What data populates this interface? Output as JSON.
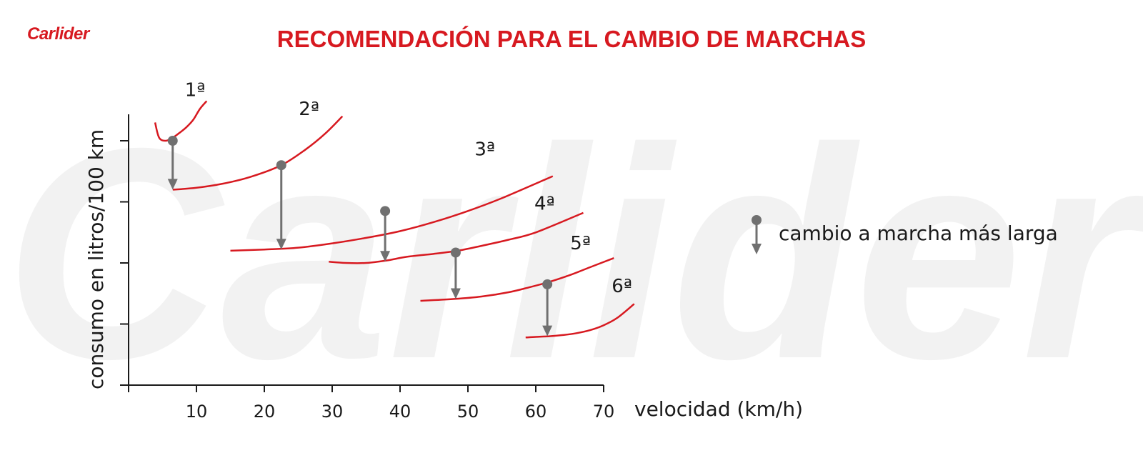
{
  "brand": {
    "logo_text": "Carlider"
  },
  "header": {
    "title": "RECOMENDACIÓN PARA EL CAMBIO DE MARCHAS"
  },
  "colors": {
    "accent": "#d71920",
    "marker": "#707070",
    "axis": "#1a1a1a",
    "text": "#1a1a1a"
  },
  "legend": {
    "icon": "shift-marker-arrow-icon",
    "label": "cambio a marcha más larga"
  },
  "chart_data": {
    "type": "line",
    "title": "RECOMENDACIÓN PARA EL CAMBIO DE MARCHAS",
    "xlabel": "velocidad (km/h)",
    "ylabel": "consumo en litros/100 km",
    "xlim": [
      0,
      70
    ],
    "ylim": [
      0,
      4.4
    ],
    "x_ticks": [
      10,
      20,
      30,
      40,
      50,
      60,
      70
    ],
    "y_ticks": [
      1,
      2,
      3,
      4
    ],
    "y_tick_labels_shown": false,
    "grid": false,
    "series": [
      {
        "name": "1ª",
        "x": [
          3.9,
          4.5,
          5.5,
          6.5,
          7.5,
          8.5,
          9.5,
          10.5,
          11.5
        ],
        "y": [
          4.3,
          4.05,
          4.0,
          4.05,
          4.13,
          4.22,
          4.34,
          4.52,
          4.65
        ]
      },
      {
        "name": "2ª",
        "x": [
          6.5,
          10,
          14,
          18,
          22.5,
          26,
          29,
          31.5
        ],
        "y": [
          3.2,
          3.23,
          3.3,
          3.41,
          3.6,
          3.85,
          4.12,
          4.4
        ]
      },
      {
        "name": "3ª",
        "x": [
          15,
          20,
          25,
          30,
          35,
          40,
          45,
          50,
          55,
          62.5
        ],
        "y": [
          2.2,
          2.22,
          2.25,
          2.32,
          2.41,
          2.52,
          2.67,
          2.85,
          3.06,
          3.42
        ]
      },
      {
        "name": "4ª",
        "x": [
          29.5,
          32,
          35,
          38,
          41,
          45,
          48.5,
          52,
          56,
          60,
          67
        ],
        "y": [
          2.02,
          2.0,
          2.0,
          2.04,
          2.1,
          2.15,
          2.2,
          2.28,
          2.38,
          2.5,
          2.82
        ]
      },
      {
        "name": "5ª",
        "x": [
          43,
          48,
          52,
          56,
          59,
          62,
          65,
          68,
          71.5
        ],
        "y": [
          1.38,
          1.41,
          1.45,
          1.52,
          1.6,
          1.69,
          1.8,
          1.93,
          2.08
        ]
      },
      {
        "name": "6ª",
        "x": [
          58.5,
          60,
          62,
          64,
          66,
          68,
          70,
          72,
          74.5
        ],
        "y": [
          0.78,
          0.79,
          0.8,
          0.82,
          0.85,
          0.9,
          0.98,
          1.1,
          1.33
        ]
      }
    ],
    "shift_points": [
      {
        "x": 6.5,
        "from_y": 4.0,
        "to_y": 3.2
      },
      {
        "x": 22.5,
        "from_y": 3.6,
        "to_y": 2.22
      },
      {
        "x": 37.8,
        "from_y": 2.85,
        "to_y": 2.02
      },
      {
        "x": 48.2,
        "from_y": 2.17,
        "to_y": 1.41
      },
      {
        "x": 61.7,
        "from_y": 1.65,
        "to_y": 0.8
      }
    ],
    "series_labels": [
      {
        "text": "1ª",
        "x": 9.8,
        "y": 4.73
      },
      {
        "text": "2ª",
        "x": 26.6,
        "y": 4.42
      },
      {
        "text": "3ª",
        "x": 52.5,
        "y": 3.76
      },
      {
        "text": "4ª",
        "x": 61.3,
        "y": 2.87
      },
      {
        "text": "5ª",
        "x": 66.6,
        "y": 2.22
      },
      {
        "text": "6ª",
        "x": 72.7,
        "y": 1.52
      }
    ]
  }
}
